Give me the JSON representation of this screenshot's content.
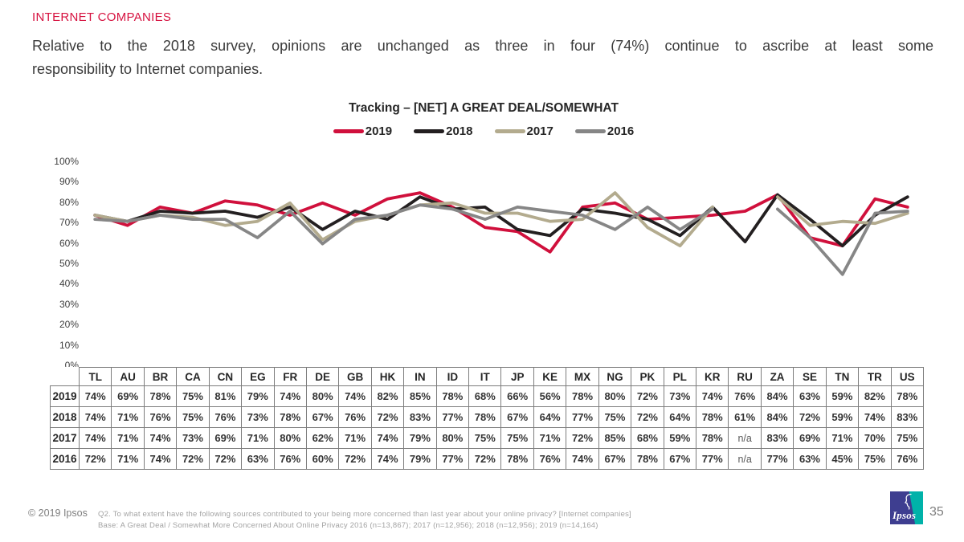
{
  "header": {
    "kicker": "INTERNET COMPANIES",
    "subtitle_line1": "Relative to the 2018 survey, opinions are unchanged as three in four (74%) continue to ascribe at least some",
    "subtitle_line2": "responsibility to Internet companies."
  },
  "chart_data": {
    "type": "line",
    "title": "Tracking – [NET] A GREAT DEAL/SOMEWHAT",
    "categories": [
      "TL",
      "AU",
      "BR",
      "CA",
      "CN",
      "EG",
      "FR",
      "DE",
      "GB",
      "HK",
      "IN",
      "ID",
      "IT",
      "JP",
      "KE",
      "MX",
      "NG",
      "PK",
      "PL",
      "KR",
      "RU",
      "ZA",
      "SE",
      "TN",
      "TR",
      "US"
    ],
    "series": [
      {
        "name": "2019",
        "color": "#d0103c",
        "values": [
          74,
          69,
          78,
          75,
          81,
          79,
          74,
          80,
          74,
          82,
          85,
          78,
          68,
          66,
          56,
          78,
          80,
          72,
          73,
          74,
          76,
          84,
          63,
          59,
          82,
          78
        ]
      },
      {
        "name": "2018",
        "color": "#231f20",
        "values": [
          74,
          71,
          76,
          75,
          76,
          73,
          78,
          67,
          76,
          72,
          83,
          77,
          78,
          67,
          64,
          77,
          75,
          72,
          64,
          78,
          61,
          84,
          72,
          59,
          74,
          83
        ]
      },
      {
        "name": "2017",
        "color": "#b3ab8e",
        "values": [
          74,
          71,
          74,
          73,
          69,
          71,
          80,
          62,
          71,
          74,
          79,
          80,
          75,
          75,
          71,
          72,
          85,
          68,
          59,
          78,
          null,
          83,
          69,
          71,
          70,
          75
        ]
      },
      {
        "name": "2016",
        "color": "#868686",
        "values": [
          72,
          71,
          74,
          72,
          72,
          63,
          76,
          60,
          72,
          74,
          79,
          77,
          72,
          78,
          76,
          74,
          67,
          78,
          67,
          77,
          null,
          77,
          63,
          45,
          75,
          76
        ]
      }
    ],
    "value_suffix": "%",
    "na_label": "n/a",
    "ylim": [
      0,
      100
    ],
    "y_tick_step": 10,
    "y_tick_suffix": "%",
    "grid": false,
    "legend_position": "top"
  },
  "footer": {
    "copyright": "© 2019 Ipsos",
    "note_line1": "Q2. To what extent have the following sources contributed to your being more concerned than last year about your online privacy? [Internet companies]",
    "note_line2": "Base: A Great Deal / Somewhat More Concerned About Online Privacy 2016 (n=13,867); 2017 (n=12,956); 2018 (n=12,956); 2019 (n=14,164)",
    "page_number": "35",
    "logo_text": "Ipsos",
    "logo_navy": "#3e3e90",
    "logo_teal": "#00b2a9"
  }
}
